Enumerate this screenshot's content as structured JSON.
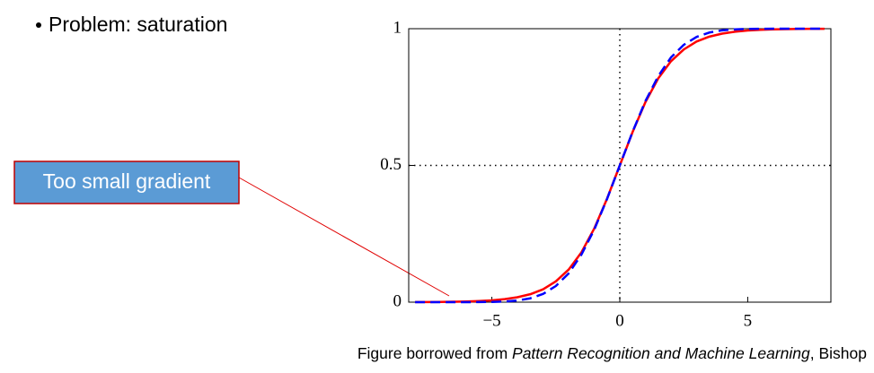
{
  "bullet": "Problem: saturation",
  "callout": "Too small gradient",
  "caption": {
    "prefix": "Figure borrowed from ",
    "book": "Pattern Recognition and Machine Learning",
    "suffix": ", Bishop"
  },
  "chart_data": {
    "type": "line",
    "x": [
      -8,
      -7.5,
      -7,
      -6.5,
      -6,
      -5.5,
      -5,
      -4.5,
      -4,
      -3.5,
      -3,
      -2.5,
      -2,
      -1.5,
      -1,
      -0.5,
      0,
      0.5,
      1,
      1.5,
      2,
      2.5,
      3,
      3.5,
      4,
      4.5,
      5,
      5.5,
      6,
      6.5,
      7,
      7.5,
      8
    ],
    "series": [
      {
        "color": "#ff0000",
        "dash": false,
        "values": [
          0.0003,
          0.0006,
          0.0009,
          0.0015,
          0.0025,
          0.0041,
          0.0067,
          0.011,
          0.018,
          0.029,
          0.047,
          0.076,
          0.119,
          0.182,
          0.269,
          0.378,
          0.5,
          0.622,
          0.731,
          0.818,
          0.881,
          0.924,
          0.953,
          0.971,
          0.982,
          0.989,
          0.9933,
          0.9959,
          0.9975,
          0.9985,
          0.9991,
          0.9994,
          0.9997
        ]
      },
      {
        "color": "#0000ff",
        "dash": true,
        "values": [
          0,
          0,
          0,
          0,
          0.0001,
          0.0003,
          0.0009,
          0.0024,
          0.006,
          0.014,
          0.03,
          0.059,
          0.105,
          0.174,
          0.265,
          0.377,
          0.5,
          0.623,
          0.735,
          0.826,
          0.895,
          0.941,
          0.97,
          0.986,
          0.994,
          0.9976,
          0.9991,
          0.9997,
          0.9999,
          1,
          1,
          1,
          1
        ]
      }
    ],
    "xlim": [
      -8.25,
      8.25
    ],
    "ylim": [
      0,
      1
    ],
    "xticks": [
      {
        "value": -5,
        "label": "−5"
      },
      0,
      5
    ],
    "yticks": [
      0,
      0.5,
      1
    ],
    "reference_lines": {
      "x": 0,
      "y": 0.5
    }
  }
}
